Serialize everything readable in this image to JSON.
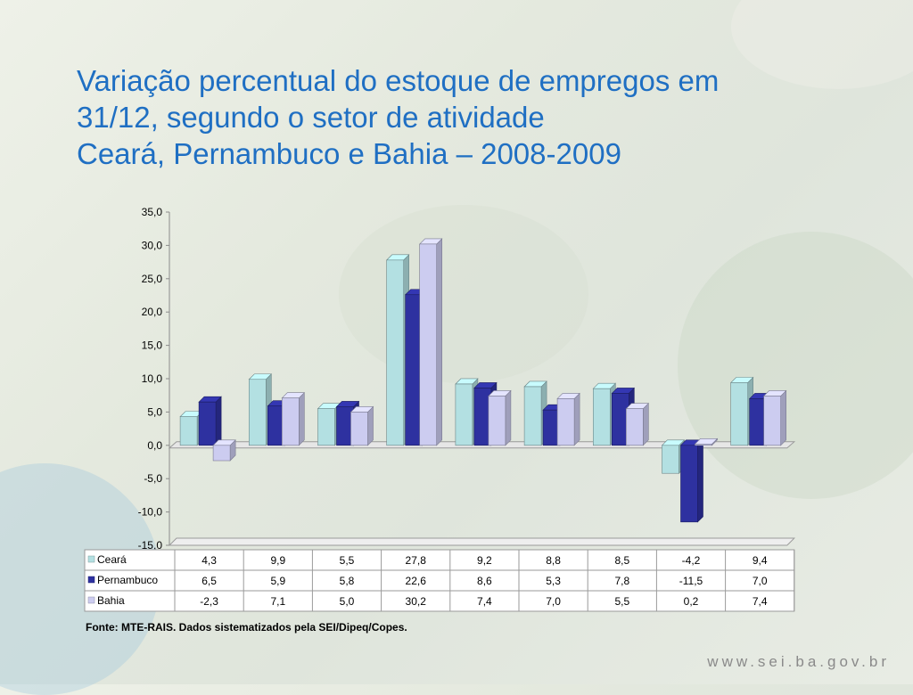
{
  "title_lines": [
    "Variação percentual do estoque de empregos em",
    "31/12, segundo o setor de atividade",
    "Ceará, Pernambuco e Bahia – 2008-2009"
  ],
  "source": "Fonte: MTE-RAIS. Dados sistematizados pela SEI/Dipeq/Copes.",
  "url": "www.sei.ba.gov.br",
  "chart_data": {
    "type": "bar",
    "title": "",
    "xlabel": "",
    "ylabel": "",
    "ylim": [
      -15,
      35
    ],
    "yticks": [
      "35,0",
      "30,0",
      "25,0",
      "20,0",
      "15,0",
      "10,0",
      "5,0",
      "0,0",
      "-5,0",
      "-10,0",
      "-15,0"
    ],
    "categories": [
      "",
      "",
      "",
      "",
      "",
      "",
      "",
      "",
      ""
    ],
    "series": [
      {
        "name": "Ceará",
        "color": "#b3e0e2",
        "values": [
          4.3,
          9.9,
          5.5,
          27.8,
          9.2,
          8.8,
          8.5,
          -4.2,
          9.4
        ],
        "labels": [
          "4,3",
          "9,9",
          "5,5",
          "27,8",
          "9,2",
          "8,8",
          "8,5",
          "-4,2",
          "9,4"
        ]
      },
      {
        "name": "Pernambuco",
        "color": "#2e31a0",
        "values": [
          6.5,
          5.9,
          5.8,
          22.6,
          8.6,
          5.3,
          7.8,
          -11.5,
          7.0
        ],
        "labels": [
          "6,5",
          "5,9",
          "5,8",
          "22,6",
          "8,6",
          "5,3",
          "7,8",
          "-11,5",
          "7,0"
        ]
      },
      {
        "name": "Bahia",
        "color": "#ccccf0",
        "values": [
          -2.3,
          7.1,
          5.0,
          30.2,
          7.4,
          7.0,
          5.5,
          0.2,
          7.4
        ],
        "labels": [
          "-2,3",
          "7,1",
          "5,0",
          "30,2",
          "7,4",
          "7,0",
          "5,5",
          "0,2",
          "7,4"
        ]
      }
    ],
    "grid": false,
    "data_table": true
  }
}
